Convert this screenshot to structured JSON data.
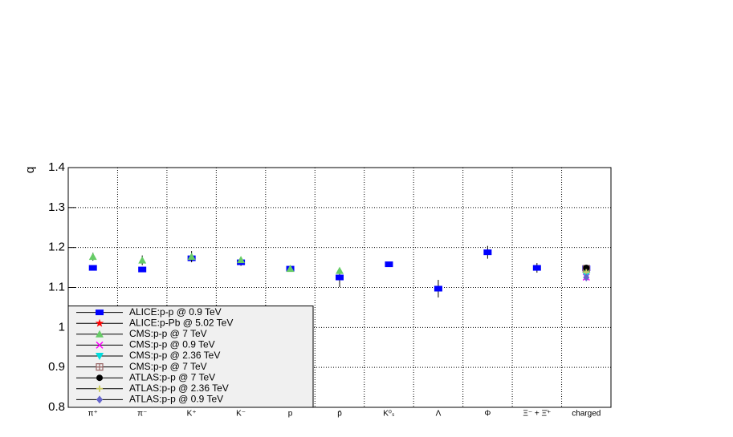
{
  "chart_data": {
    "type": "scatter",
    "y_label": "q",
    "categories": [
      "π⁺",
      "π⁻",
      "K⁺",
      "K⁻",
      "p",
      "p̄",
      "K⁰ₛ",
      "Λ",
      "Φ",
      "Ξ⁻ + Ξ̄⁺",
      "charged"
    ],
    "ylim": [
      0.8,
      1.4
    ],
    "yticks": [
      0.8,
      0.9,
      1,
      1.1,
      1.2,
      1.3,
      1.4
    ],
    "grid": true,
    "legend": "bottom-left",
    "series": [
      {
        "name": "ALICE:p-p @ 0.9 TeV",
        "color": "#0000ff",
        "marker": "square",
        "values": [
          1.149,
          1.145,
          1.173,
          1.163,
          1.147,
          1.125,
          1.158,
          1.097,
          1.188,
          1.149,
          1.148
        ],
        "errors": [
          0.004,
          0.004,
          0.008,
          0.009,
          0.004,
          0.024,
          0.006,
          0.022,
          0.016,
          0.012,
          0.005
        ]
      },
      {
        "name": "ALICE:p-Pb @ 5.02 TeV",
        "color": "#ff0000",
        "marker": "star",
        "values": [
          null,
          null,
          null,
          null,
          null,
          null,
          null,
          null,
          null,
          null,
          1.14
        ],
        "errors": [
          null,
          null,
          null,
          null,
          null,
          null,
          null,
          null,
          null,
          null,
          0.004
        ]
      },
      {
        "name": "CMS:p-p @ 7 TeV",
        "color": "#66cc66",
        "marker": "triangle",
        "values": [
          1.177,
          1.168,
          1.177,
          1.169,
          1.147,
          1.142,
          null,
          null,
          null,
          null,
          1.145
        ],
        "errors": [
          0.01,
          0.012,
          0.014,
          0.004,
          0.003,
          0.004,
          null,
          null,
          null,
          null,
          0.003
        ]
      },
      {
        "name": "CMS:p-p @ 0.9 TeV",
        "color": "#ff00ff",
        "marker": "x",
        "values": [
          null,
          null,
          null,
          null,
          null,
          null,
          null,
          null,
          null,
          null,
          1.126
        ],
        "errors": [
          null,
          null,
          null,
          null,
          null,
          null,
          null,
          null,
          null,
          null,
          0.003
        ]
      },
      {
        "name": "CMS:p-p @ 2.36 TeV",
        "color": "#00dddd",
        "marker": "triangle-down",
        "values": [
          null,
          null,
          null,
          null,
          null,
          null,
          null,
          null,
          null,
          null,
          1.131
        ],
        "errors": [
          null,
          null,
          null,
          null,
          null,
          null,
          null,
          null,
          null,
          null,
          0.003
        ]
      },
      {
        "name": "CMS:p-p @ 7 TeV",
        "color": "#996666",
        "marker": "boxcross",
        "values": [
          null,
          null,
          null,
          null,
          null,
          null,
          null,
          null,
          null,
          null,
          1.147
        ],
        "errors": [
          null,
          null,
          null,
          null,
          null,
          null,
          null,
          null,
          null,
          null,
          0.004
        ]
      },
      {
        "name": "ATLAS:p-p @ 7 TeV",
        "color": "#000000",
        "marker": "circle",
        "values": [
          null,
          null,
          null,
          null,
          null,
          null,
          null,
          null,
          null,
          null,
          1.149
        ],
        "errors": [
          null,
          null,
          null,
          null,
          null,
          null,
          null,
          null,
          null,
          null,
          0.003
        ]
      },
      {
        "name": "ATLAS:p-p @ 2.36 TeV",
        "color": "#cccc66",
        "marker": "cross",
        "values": [
          null,
          null,
          null,
          null,
          null,
          null,
          null,
          null,
          null,
          null,
          1.138
        ],
        "errors": [
          null,
          null,
          null,
          null,
          null,
          null,
          null,
          null,
          null,
          null,
          0.004
        ]
      },
      {
        "name": "ATLAS:p-p @ 0.9 TeV",
        "color": "#6666cc",
        "marker": "diamond",
        "values": [
          null,
          null,
          null,
          null,
          null,
          null,
          null,
          null,
          null,
          null,
          1.125
        ],
        "errors": [
          null,
          null,
          null,
          null,
          null,
          null,
          null,
          null,
          null,
          null,
          0.003
        ]
      }
    ]
  }
}
